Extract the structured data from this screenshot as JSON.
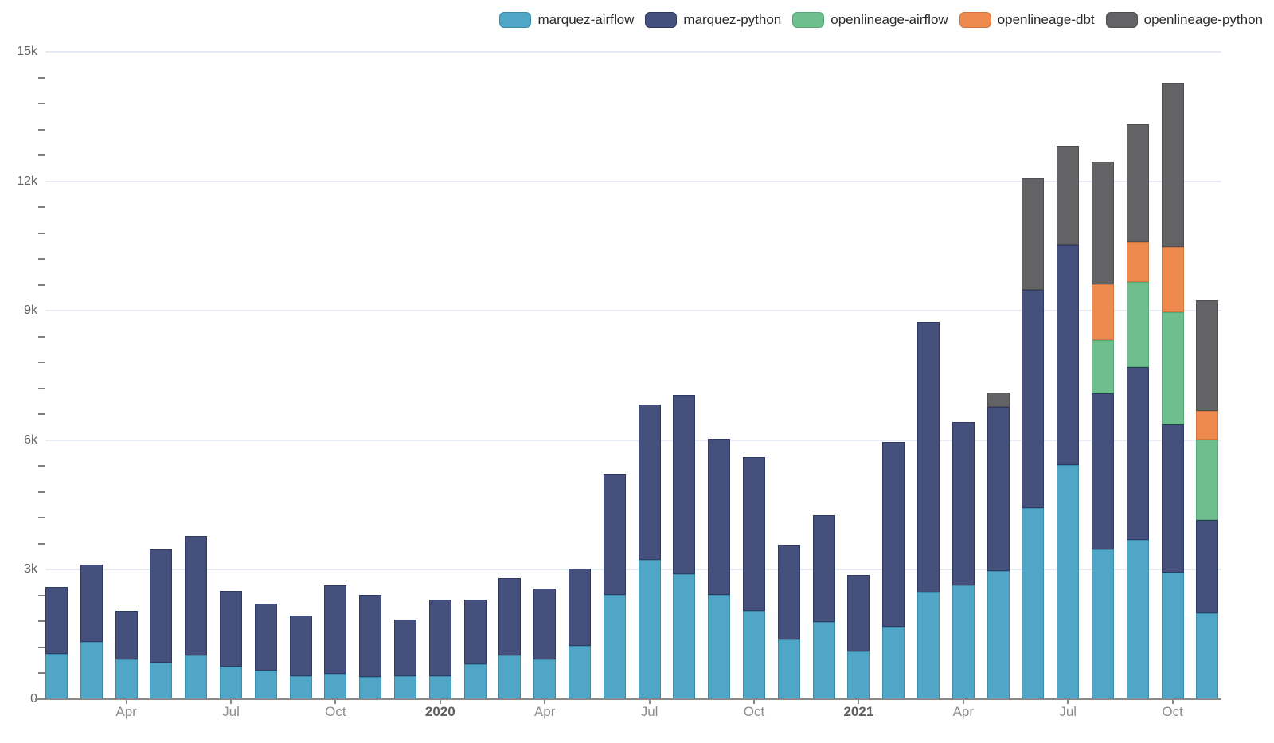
{
  "chart_data": {
    "type": "bar",
    "stacked": true,
    "title": "",
    "x_categories": [
      "2019-02",
      "2019-03",
      "2019-04",
      "2019-05",
      "2019-06",
      "2019-07",
      "2019-08",
      "2019-09",
      "2019-10",
      "2019-11",
      "2019-12",
      "2020-01",
      "2020-02",
      "2020-03",
      "2020-04",
      "2020-05",
      "2020-06",
      "2020-07",
      "2020-08",
      "2020-09",
      "2020-10",
      "2020-11",
      "2020-12",
      "2021-01",
      "2021-02",
      "2021-03",
      "2021-04",
      "2021-05",
      "2021-06",
      "2021-07",
      "2021-08",
      "2021-09",
      "2021-10",
      "2021-11"
    ],
    "series": [
      {
        "name": "marquez-airflow",
        "color": "#4FA6C6",
        "border_color": "#3D8CAC",
        "values": [
          1050,
          1320,
          930,
          840,
          1010,
          760,
          670,
          540,
          590,
          510,
          540,
          535,
          810,
          1010,
          920,
          1240,
          2420,
          3230,
          2890,
          2420,
          2040,
          1380,
          1790,
          1100,
          1670,
          2470,
          2640,
          2970,
          4430,
          5420,
          3460,
          3690,
          2940,
          2000
        ]
      },
      {
        "name": "marquez-python",
        "color": "#45507C",
        "border_color": "#2F3A63",
        "values": [
          1550,
          1790,
          1110,
          2620,
          2780,
          1750,
          1545,
          1400,
          2040,
          1910,
          1310,
          1770,
          1490,
          1790,
          1640,
          1790,
          2800,
          3600,
          4160,
          3620,
          3570,
          2200,
          2470,
          1770,
          4290,
          6280,
          3780,
          3810,
          5060,
          5090,
          3630,
          4010,
          3430,
          2150
        ]
      },
      {
        "name": "openlineage-airflow",
        "color": "#6FBE8E",
        "border_color": "#58A877",
        "values": [
          0,
          0,
          0,
          0,
          0,
          0,
          0,
          0,
          0,
          0,
          0,
          0,
          0,
          0,
          0,
          0,
          0,
          0,
          0,
          0,
          0,
          0,
          0,
          0,
          0,
          0,
          0,
          0,
          0,
          0,
          1240,
          1960,
          2590,
          1860
        ]
      },
      {
        "name": "openlineage-dbt",
        "color": "#EF8A4E",
        "border_color": "#D0773F",
        "values": [
          0,
          0,
          0,
          0,
          0,
          0,
          0,
          0,
          0,
          0,
          0,
          0,
          0,
          0,
          0,
          0,
          0,
          0,
          0,
          0,
          0,
          0,
          0,
          0,
          0,
          0,
          0,
          0,
          0,
          0,
          1290,
          930,
          1520,
          660
        ]
      },
      {
        "name": "openlineage-python",
        "color": "#636365",
        "border_color": "#4F4F51",
        "values": [
          0,
          0,
          0,
          0,
          0,
          0,
          0,
          0,
          0,
          0,
          0,
          0,
          0,
          0,
          0,
          0,
          0,
          0,
          0,
          0,
          0,
          0,
          0,
          0,
          0,
          0,
          0,
          330,
          2570,
          2320,
          2830,
          2740,
          3800,
          2580
        ]
      }
    ],
    "y_axis": {
      "min": 0,
      "max": 15000,
      "major_step": 3000,
      "minor_step": 600,
      "tick_values": [
        0,
        3000,
        6000,
        9000,
        12000,
        15000
      ],
      "tick_labels": [
        "0",
        "3k",
        "6k",
        "9k",
        "12k",
        "15k"
      ],
      "grid": true
    },
    "x_axis": {
      "ticks": [
        {
          "label": "Apr",
          "index": 2,
          "bold": false
        },
        {
          "label": "Jul",
          "index": 5,
          "bold": false
        },
        {
          "label": "Oct",
          "index": 8,
          "bold": false
        },
        {
          "label": "2020",
          "index": 11,
          "bold": true
        },
        {
          "label": "Apr",
          "index": 14,
          "bold": false
        },
        {
          "label": "Jul",
          "index": 17,
          "bold": false
        },
        {
          "label": "Oct",
          "index": 20,
          "bold": false
        },
        {
          "label": "2021",
          "index": 23,
          "bold": true
        },
        {
          "label": "Apr",
          "index": 26,
          "bold": false
        },
        {
          "label": "Jul",
          "index": 29,
          "bold": false
        },
        {
          "label": "Oct",
          "index": 32,
          "bold": false
        }
      ]
    },
    "legend_position": "top-right"
  }
}
